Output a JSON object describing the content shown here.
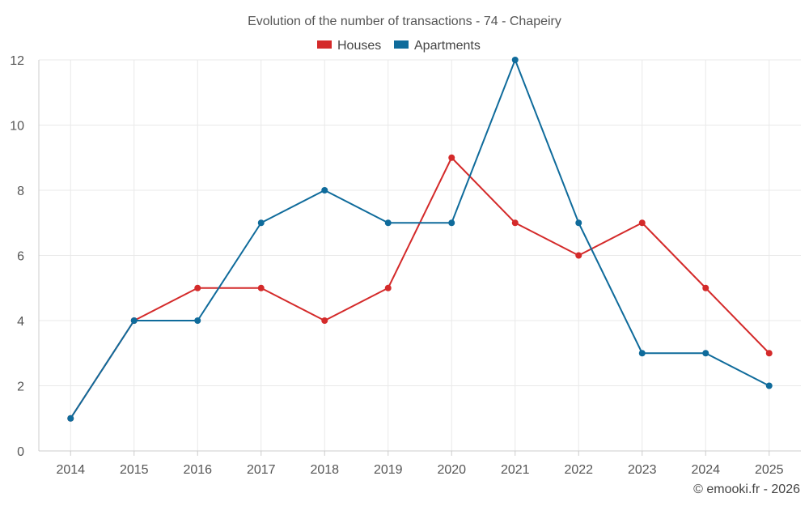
{
  "chart_data": {
    "type": "line",
    "title": "Evolution of the number of transactions - 74 - Chapeiry",
    "categories": [
      "2014",
      "2015",
      "2016",
      "2017",
      "2018",
      "2019",
      "2020",
      "2021",
      "2022",
      "2023",
      "2024",
      "2025"
    ],
    "series": [
      {
        "name": "Houses",
        "color": "#d42a2a",
        "values": [
          1,
          4,
          5,
          5,
          4,
          5,
          9,
          7,
          6,
          7,
          5,
          3
        ]
      },
      {
        "name": "Apartments",
        "color": "#0f6b9b",
        "values": [
          1,
          4,
          4,
          7,
          8,
          7,
          7,
          12,
          7,
          3,
          3,
          2
        ]
      }
    ],
    "ylim": [
      0,
      12
    ],
    "yticks": [
      0,
      2,
      4,
      6,
      8,
      10,
      12
    ],
    "legend": "top-center",
    "grid": true,
    "credit": "© emooki.fr - 2026"
  }
}
